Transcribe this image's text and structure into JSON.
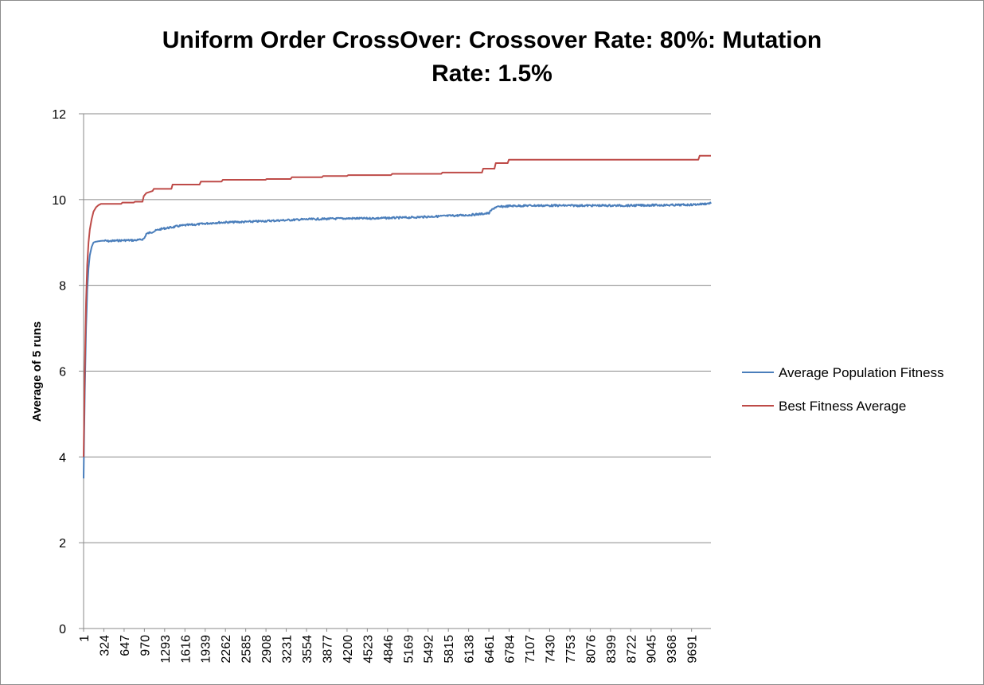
{
  "chart_data": {
    "type": "line",
    "title_line1": "Uniform Order CrossOver: Crossover Rate: 80%: Mutation",
    "title_line2": "Rate: 1.5%",
    "ylabel": "Average of 5 runs",
    "xlabel": "",
    "ylim": [
      0,
      12
    ],
    "yticks": [
      0,
      2,
      4,
      6,
      8,
      10,
      12
    ],
    "xlim": [
      1,
      10000
    ],
    "xticks": [
      1,
      324,
      647,
      970,
      1293,
      1616,
      1939,
      2262,
      2585,
      2908,
      3231,
      3554,
      3877,
      4200,
      4523,
      4846,
      5169,
      5492,
      5815,
      6138,
      6461,
      6784,
      7107,
      7430,
      7753,
      8076,
      8399,
      8722,
      9045,
      9368,
      9691
    ],
    "grid": "horizontal",
    "legend_position": "right",
    "series": [
      {
        "name": "Average Population Fitness",
        "color": "#4a7ebb",
        "x": [
          1,
          20,
          40,
          60,
          80,
          100,
          130,
          160,
          200,
          250,
          300,
          324,
          400,
          500,
          647,
          800,
          900,
          950,
          970,
          1000,
          1100,
          1200,
          1293,
          1400,
          1500,
          1616,
          1800,
          1939,
          2100,
          2262,
          2585,
          2908,
          3231,
          3554,
          3877,
          4200,
          4523,
          4846,
          5169,
          5492,
          5815,
          6138,
          6300,
          6461,
          6500,
          6560,
          6784,
          7107,
          7430,
          7753,
          8076,
          8399,
          8722,
          9045,
          9368,
          9691,
          9900,
          10000
        ],
        "values": [
          3.5,
          5.5,
          7.0,
          7.9,
          8.4,
          8.7,
          8.9,
          9.0,
          9.02,
          9.03,
          9.04,
          9.04,
          9.03,
          9.04,
          9.05,
          9.05,
          9.06,
          9.08,
          9.1,
          9.2,
          9.25,
          9.3,
          9.33,
          9.35,
          9.38,
          9.4,
          9.42,
          9.44,
          9.46,
          9.47,
          9.48,
          9.5,
          9.52,
          9.54,
          9.55,
          9.56,
          9.56,
          9.57,
          9.58,
          9.6,
          9.62,
          9.64,
          9.66,
          9.68,
          9.75,
          9.82,
          9.85,
          9.86,
          9.86,
          9.86,
          9.86,
          9.86,
          9.86,
          9.87,
          9.87,
          9.88,
          9.9,
          9.92
        ]
      },
      {
        "name": "Best Fitness Average",
        "color": "#be4b48",
        "x": [
          1,
          20,
          40,
          60,
          80,
          100,
          130,
          160,
          200,
          240,
          280,
          324,
          600,
          620,
          800,
          820,
          940,
          960,
          1000,
          1100,
          1120,
          1400,
          1420,
          1850,
          1870,
          2200,
          2220,
          2900,
          2920,
          3300,
          3320,
          3800,
          3820,
          4200,
          4220,
          4900,
          4920,
          5700,
          5720,
          6350,
          6370,
          6550,
          6570,
          6760,
          6780,
          9800,
          9820,
          10000
        ],
        "values": [
          4.0,
          6.0,
          7.6,
          8.5,
          9.0,
          9.3,
          9.55,
          9.72,
          9.82,
          9.87,
          9.9,
          9.9,
          9.9,
          9.93,
          9.93,
          9.95,
          9.95,
          10.08,
          10.15,
          10.2,
          10.25,
          10.25,
          10.35,
          10.35,
          10.42,
          10.42,
          10.46,
          10.46,
          10.48,
          10.48,
          10.52,
          10.52,
          10.55,
          10.55,
          10.57,
          10.57,
          10.6,
          10.6,
          10.63,
          10.63,
          10.72,
          10.72,
          10.85,
          10.85,
          10.93,
          10.93,
          11.02,
          11.02
        ]
      }
    ]
  }
}
